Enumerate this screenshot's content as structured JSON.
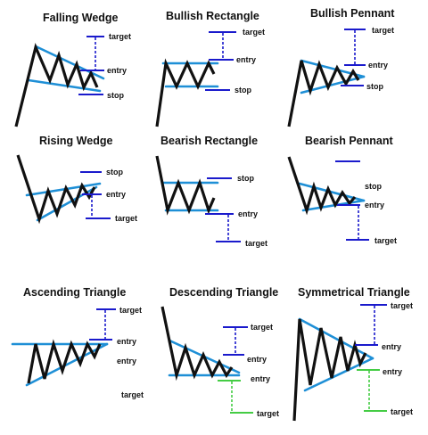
{
  "patterns": {
    "falling_wedge": {
      "title": "Falling Wedge",
      "target": "target",
      "entry": "entry",
      "stop": "stop"
    },
    "bullish_rectangle": {
      "title": "Bullish Rectangle",
      "target": "target",
      "entry": "entry",
      "stop": "stop"
    },
    "bullish_pennant": {
      "title": "Bullish Pennant",
      "target": "target",
      "entry": "entry",
      "stop": "stop"
    },
    "rising_wedge": {
      "title": "Rising Wedge",
      "stop": "stop",
      "entry": "entry",
      "target": "target"
    },
    "bearish_rectangle": {
      "title": "Bearish Rectangle",
      "stop": "stop",
      "entry": "entry",
      "target": "target"
    },
    "bearish_pennant": {
      "title": "Bearish Pennant",
      "stop": "stop",
      "entry": "entry",
      "target": "target"
    },
    "ascending_triangle": {
      "title": "Ascending Triangle",
      "target": "target",
      "entry": "entry",
      "entry2": "entry",
      "target2": "target"
    },
    "descending_triangle": {
      "title": "Descending Triangle",
      "target": "target",
      "entry": "entry",
      "entry2": "entry",
      "target2": "target"
    },
    "symmetrical_triangle": {
      "title": "Symmetrical Triangle",
      "target": "target",
      "entry": "entry",
      "entry2": "entry",
      "target2": "target"
    }
  },
  "colors": {
    "price": "#111111",
    "trendline": "#1e8fd6",
    "level": "#1a1acc",
    "level_alt": "#44cc44"
  }
}
